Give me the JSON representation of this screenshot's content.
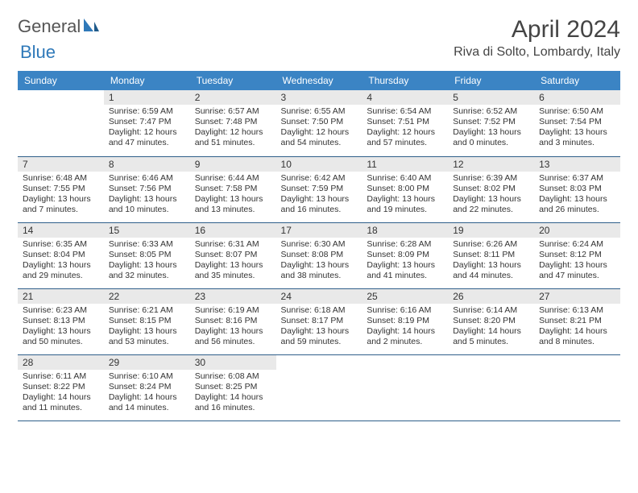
{
  "brand": {
    "word1": "General",
    "word2": "Blue",
    "accent_color": "#2f79b9",
    "text_color": "#555555"
  },
  "title": "April 2024",
  "location": "Riva di Solto, Lombardy, Italy",
  "header_bg": "#3b84c4",
  "header_fg": "#ffffff",
  "daynum_bg": "#e9e9e9",
  "row_border": "#2f5f8a",
  "weekdays": [
    "Sunday",
    "Monday",
    "Tuesday",
    "Wednesday",
    "Thursday",
    "Friday",
    "Saturday"
  ],
  "weeks": [
    [
      {
        "n": "",
        "sr": "",
        "ss": "",
        "dl": ""
      },
      {
        "n": "1",
        "sr": "Sunrise: 6:59 AM",
        "ss": "Sunset: 7:47 PM",
        "dl": "Daylight: 12 hours and 47 minutes."
      },
      {
        "n": "2",
        "sr": "Sunrise: 6:57 AM",
        "ss": "Sunset: 7:48 PM",
        "dl": "Daylight: 12 hours and 51 minutes."
      },
      {
        "n": "3",
        "sr": "Sunrise: 6:55 AM",
        "ss": "Sunset: 7:50 PM",
        "dl": "Daylight: 12 hours and 54 minutes."
      },
      {
        "n": "4",
        "sr": "Sunrise: 6:54 AM",
        "ss": "Sunset: 7:51 PM",
        "dl": "Daylight: 12 hours and 57 minutes."
      },
      {
        "n": "5",
        "sr": "Sunrise: 6:52 AM",
        "ss": "Sunset: 7:52 PM",
        "dl": "Daylight: 13 hours and 0 minutes."
      },
      {
        "n": "6",
        "sr": "Sunrise: 6:50 AM",
        "ss": "Sunset: 7:54 PM",
        "dl": "Daylight: 13 hours and 3 minutes."
      }
    ],
    [
      {
        "n": "7",
        "sr": "Sunrise: 6:48 AM",
        "ss": "Sunset: 7:55 PM",
        "dl": "Daylight: 13 hours and 7 minutes."
      },
      {
        "n": "8",
        "sr": "Sunrise: 6:46 AM",
        "ss": "Sunset: 7:56 PM",
        "dl": "Daylight: 13 hours and 10 minutes."
      },
      {
        "n": "9",
        "sr": "Sunrise: 6:44 AM",
        "ss": "Sunset: 7:58 PM",
        "dl": "Daylight: 13 hours and 13 minutes."
      },
      {
        "n": "10",
        "sr": "Sunrise: 6:42 AM",
        "ss": "Sunset: 7:59 PM",
        "dl": "Daylight: 13 hours and 16 minutes."
      },
      {
        "n": "11",
        "sr": "Sunrise: 6:40 AM",
        "ss": "Sunset: 8:00 PM",
        "dl": "Daylight: 13 hours and 19 minutes."
      },
      {
        "n": "12",
        "sr": "Sunrise: 6:39 AM",
        "ss": "Sunset: 8:02 PM",
        "dl": "Daylight: 13 hours and 22 minutes."
      },
      {
        "n": "13",
        "sr": "Sunrise: 6:37 AM",
        "ss": "Sunset: 8:03 PM",
        "dl": "Daylight: 13 hours and 26 minutes."
      }
    ],
    [
      {
        "n": "14",
        "sr": "Sunrise: 6:35 AM",
        "ss": "Sunset: 8:04 PM",
        "dl": "Daylight: 13 hours and 29 minutes."
      },
      {
        "n": "15",
        "sr": "Sunrise: 6:33 AM",
        "ss": "Sunset: 8:05 PM",
        "dl": "Daylight: 13 hours and 32 minutes."
      },
      {
        "n": "16",
        "sr": "Sunrise: 6:31 AM",
        "ss": "Sunset: 8:07 PM",
        "dl": "Daylight: 13 hours and 35 minutes."
      },
      {
        "n": "17",
        "sr": "Sunrise: 6:30 AM",
        "ss": "Sunset: 8:08 PM",
        "dl": "Daylight: 13 hours and 38 minutes."
      },
      {
        "n": "18",
        "sr": "Sunrise: 6:28 AM",
        "ss": "Sunset: 8:09 PM",
        "dl": "Daylight: 13 hours and 41 minutes."
      },
      {
        "n": "19",
        "sr": "Sunrise: 6:26 AM",
        "ss": "Sunset: 8:11 PM",
        "dl": "Daylight: 13 hours and 44 minutes."
      },
      {
        "n": "20",
        "sr": "Sunrise: 6:24 AM",
        "ss": "Sunset: 8:12 PM",
        "dl": "Daylight: 13 hours and 47 minutes."
      }
    ],
    [
      {
        "n": "21",
        "sr": "Sunrise: 6:23 AM",
        "ss": "Sunset: 8:13 PM",
        "dl": "Daylight: 13 hours and 50 minutes."
      },
      {
        "n": "22",
        "sr": "Sunrise: 6:21 AM",
        "ss": "Sunset: 8:15 PM",
        "dl": "Daylight: 13 hours and 53 minutes."
      },
      {
        "n": "23",
        "sr": "Sunrise: 6:19 AM",
        "ss": "Sunset: 8:16 PM",
        "dl": "Daylight: 13 hours and 56 minutes."
      },
      {
        "n": "24",
        "sr": "Sunrise: 6:18 AM",
        "ss": "Sunset: 8:17 PM",
        "dl": "Daylight: 13 hours and 59 minutes."
      },
      {
        "n": "25",
        "sr": "Sunrise: 6:16 AM",
        "ss": "Sunset: 8:19 PM",
        "dl": "Daylight: 14 hours and 2 minutes."
      },
      {
        "n": "26",
        "sr": "Sunrise: 6:14 AM",
        "ss": "Sunset: 8:20 PM",
        "dl": "Daylight: 14 hours and 5 minutes."
      },
      {
        "n": "27",
        "sr": "Sunrise: 6:13 AM",
        "ss": "Sunset: 8:21 PM",
        "dl": "Daylight: 14 hours and 8 minutes."
      }
    ],
    [
      {
        "n": "28",
        "sr": "Sunrise: 6:11 AM",
        "ss": "Sunset: 8:22 PM",
        "dl": "Daylight: 14 hours and 11 minutes."
      },
      {
        "n": "29",
        "sr": "Sunrise: 6:10 AM",
        "ss": "Sunset: 8:24 PM",
        "dl": "Daylight: 14 hours and 14 minutes."
      },
      {
        "n": "30",
        "sr": "Sunrise: 6:08 AM",
        "ss": "Sunset: 8:25 PM",
        "dl": "Daylight: 14 hours and 16 minutes."
      },
      {
        "n": "",
        "sr": "",
        "ss": "",
        "dl": ""
      },
      {
        "n": "",
        "sr": "",
        "ss": "",
        "dl": ""
      },
      {
        "n": "",
        "sr": "",
        "ss": "",
        "dl": ""
      },
      {
        "n": "",
        "sr": "",
        "ss": "",
        "dl": ""
      }
    ]
  ]
}
